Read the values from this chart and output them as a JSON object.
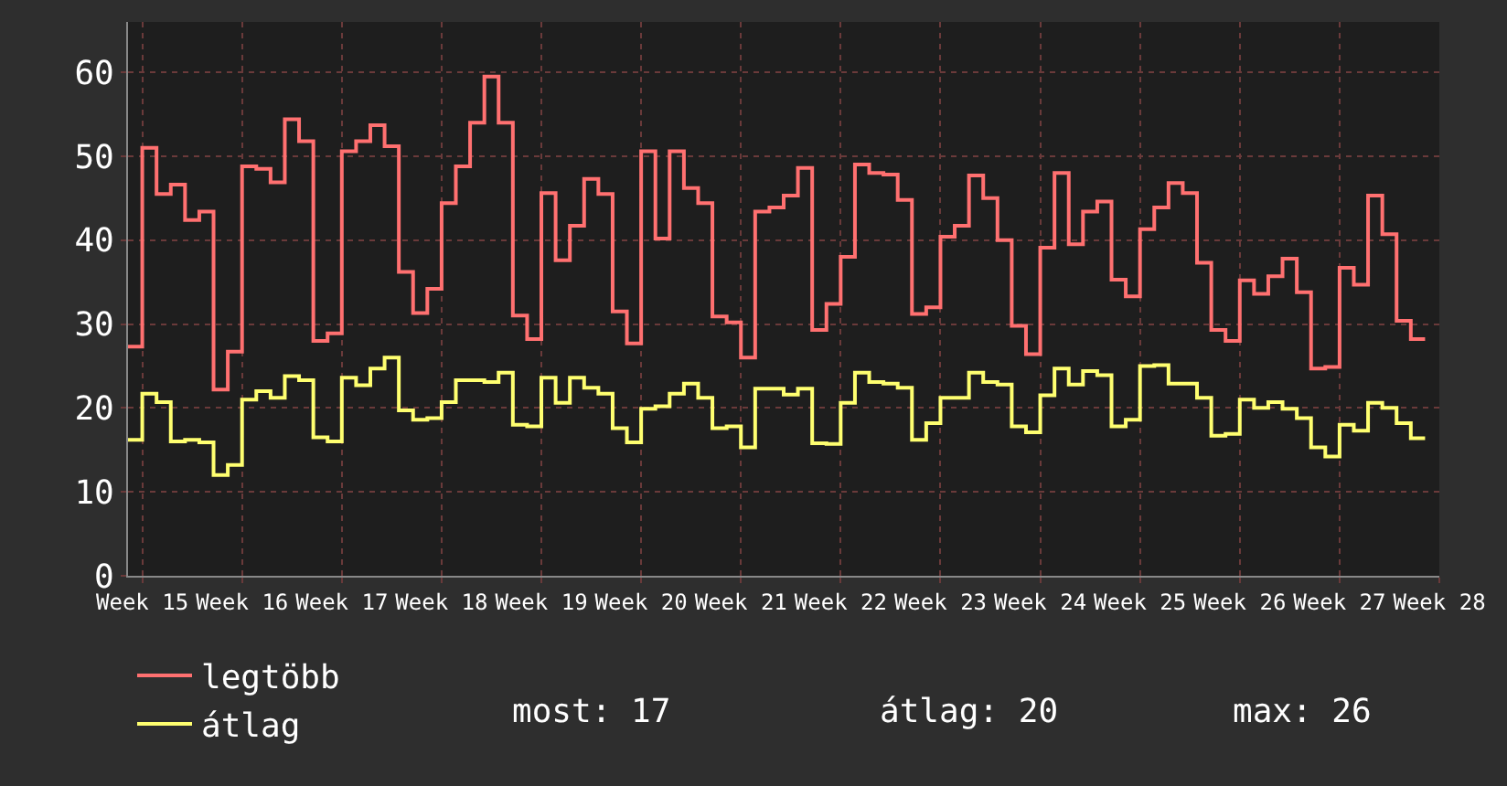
{
  "chart_data": {
    "type": "step",
    "categories": [
      null,
      "Week 15",
      null,
      null,
      null,
      null,
      null,
      null,
      "Week 16",
      null,
      null,
      null,
      null,
      null,
      null,
      "Week 17",
      null,
      null,
      null,
      null,
      null,
      null,
      "Week 18",
      null,
      null,
      null,
      null,
      null,
      null,
      "Week 19",
      null,
      null,
      null,
      null,
      null,
      null,
      "Week 20",
      null,
      null,
      null,
      null,
      null,
      null,
      "Week 21",
      null,
      null,
      null,
      null,
      null,
      null,
      "Week 22",
      null,
      null,
      null,
      null,
      null,
      null,
      "Week 23",
      null,
      null,
      null,
      null,
      null,
      null,
      "Week 24",
      null,
      null,
      null,
      null,
      null,
      null,
      "Week 25",
      null,
      null,
      null,
      null,
      null,
      null,
      "Week 26",
      null,
      null,
      null,
      null,
      null,
      null,
      "Week 27",
      null,
      null,
      null,
      null,
      null,
      null,
      "Week 28"
    ],
    "series": [
      {
        "name": "legtöbb",
        "color": "#ff7070",
        "values": [
          27.3,
          51,
          45.5,
          46.6,
          42.4,
          43.4,
          22.2,
          26.7,
          48.8,
          48.5,
          46.9,
          54.4,
          51.8,
          28,
          28.9,
          50.6,
          51.8,
          53.7,
          51.2,
          36.2,
          31.3,
          34.2,
          44.4,
          48.8,
          54,
          59.5,
          54,
          31,
          28.2,
          45.6,
          37.6,
          41.7,
          47.3,
          45.5,
          31.5,
          27.7,
          50.6,
          40.2,
          50.6,
          46.2,
          44.4,
          30.9,
          30.2,
          26,
          43.4,
          43.9,
          45.3,
          48.6,
          29.3,
          32.4,
          38,
          49,
          48,
          47.8,
          44.8,
          31.2,
          32,
          40.4,
          41.7,
          47.7,
          45,
          40,
          29.8,
          26.4,
          39.1,
          48,
          39.5,
          43.4,
          44.6,
          35.3,
          33.3,
          41.3,
          43.9,
          46.8,
          45.6,
          37.3,
          29.3,
          28,
          35.2,
          33.6,
          35.7,
          37.8,
          33.8,
          24.7,
          24.9,
          36.7,
          34.7,
          45.3,
          40.7,
          30.4,
          28.2,
          28.2,
          null
        ]
      },
      {
        "name": "átlag",
        "color": "#ffff70",
        "values": [
          16.2,
          21.7,
          20.7,
          16,
          16.2,
          15.9,
          12,
          13.2,
          21,
          22,
          21.2,
          23.8,
          23.3,
          16.5,
          16,
          23.6,
          22.7,
          24.7,
          26,
          19.7,
          18.6,
          18.8,
          20.7,
          23.3,
          23.3,
          23.1,
          24.2,
          18,
          17.8,
          23.6,
          20.6,
          23.6,
          22.4,
          21.7,
          17.6,
          15.9,
          19.9,
          20.2,
          21.7,
          22.9,
          21.2,
          17.6,
          17.8,
          15.3,
          22.3,
          22.3,
          21.6,
          22.3,
          15.8,
          15.7,
          20.6,
          24.2,
          23.1,
          22.9,
          22.4,
          16.2,
          18.2,
          21.2,
          21.2,
          24.2,
          23.1,
          22.8,
          17.8,
          17.1,
          21.5,
          24.7,
          22.8,
          24.4,
          23.9,
          17.8,
          18.6,
          25,
          25.1,
          22.9,
          22.9,
          21.2,
          16.7,
          16.9,
          21,
          20,
          20.7,
          19.9,
          18.8,
          15.3,
          14.2,
          18,
          17.3,
          20.6,
          20,
          18.2,
          16.4,
          16.4,
          null
        ]
      }
    ],
    "ylim": [
      0,
      66
    ],
    "yticks": [
      0,
      10,
      20,
      30,
      40,
      50,
      60
    ],
    "grid": true,
    "legend": "bottom",
    "annotations": [
      "most: 17",
      "átlag: 20",
      "max: 26"
    ]
  }
}
